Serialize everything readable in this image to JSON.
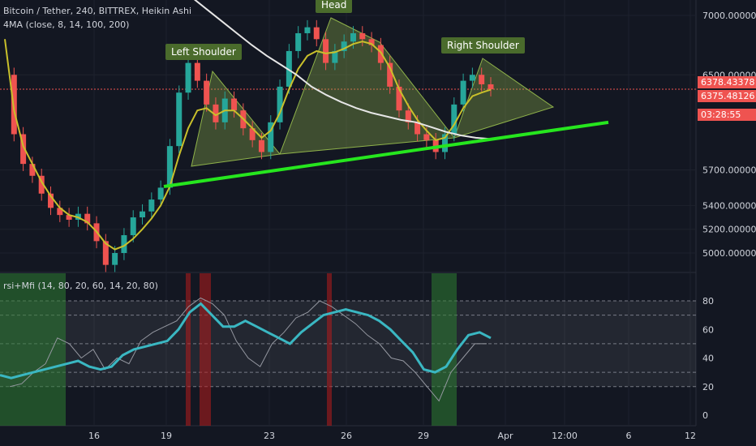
{
  "legend": {
    "symbol": "Bitcoin / Tether, 240, BITTREX, Heikin Ashi",
    "ma": "4MA (close, 8, 14, 100, 200)",
    "osc": "rsi+Mfi (14, 80, 20, 60, 14, 20, 80)"
  },
  "annotations": {
    "left": "Left Shoulder",
    "head": "Head",
    "right": "Right Shoulder"
  },
  "price_tags": {
    "last": "6378.43378",
    "ma": "6375.48126",
    "countdown": "03:28:55"
  },
  "colors": {
    "bg": "#131722",
    "up": "#26a69a",
    "down": "#ef5350",
    "ma_fast": "#c9c02b",
    "ma_slow": "#e6e6e6",
    "trend": "#26e61e",
    "rsi": "#3ab7c2",
    "mfi": "#9598a1",
    "pattern": "#8fb24a",
    "osc_green": "#2e7d32",
    "osc_red": "#b71c1c"
  },
  "chart_data": [
    {
      "type": "candlestick",
      "title": "Bitcoin / Tether, 240, BITTREX, Heikin Ashi",
      "x_ticks": [
        "16",
        "19",
        "23",
        "26",
        "29",
        "Apr",
        "12:00",
        "6",
        "12"
      ],
      "y_ticks": [
        "7000.00000",
        "6500.00000",
        "5700.00000",
        "5400.00000",
        "5200.00000",
        "5000.00000"
      ],
      "y_tick_values": [
        7000,
        6500,
        5700,
        5400,
        5200,
        5000
      ],
      "last_price": 6378.43378,
      "ma_value": 6375.48126,
      "close_series": [
        6500,
        6000,
        5750,
        5650,
        5500,
        5380,
        5320,
        5280,
        5330,
        5250,
        5100,
        4900,
        5000,
        5150,
        5300,
        5350,
        5450,
        5550,
        5900,
        6350,
        6600,
        6450,
        6250,
        6100,
        6300,
        6200,
        6050,
        5950,
        5850,
        6100,
        6400,
        6700,
        6850,
        6900,
        6800,
        6600,
        6700,
        6780,
        6850,
        6800,
        6750,
        6600,
        6400,
        6200,
        6100,
        6000,
        5950,
        5850,
        6000,
        6250,
        6450,
        6500,
        6420,
        6378
      ],
      "ma_fast_series": [
        6800,
        6200,
        5900,
        5750,
        5600,
        5480,
        5380,
        5320,
        5300,
        5260,
        5180,
        5080,
        5030,
        5060,
        5120,
        5200,
        5290,
        5400,
        5560,
        5820,
        6050,
        6200,
        6220,
        6160,
        6200,
        6200,
        6130,
        6050,
        5970,
        6030,
        6180,
        6380,
        6550,
        6660,
        6700,
        6680,
        6690,
        6720,
        6760,
        6780,
        6760,
        6690,
        6560,
        6380,
        6240,
        6120,
        6030,
        5950,
        5970,
        6080,
        6220,
        6320,
        6350,
        6375
      ],
      "ma_slow_series": [
        7350,
        7250,
        7150,
        7050,
        6950,
        6850,
        6750,
        6660,
        6580,
        6500,
        6400,
        6330,
        6270,
        6220,
        6180,
        6150,
        6120,
        6100,
        6060,
        6020,
        5990,
        5970,
        5960
      ],
      "trendline": [
        5560,
        6100
      ],
      "pattern": [
        "left shoulder",
        "head",
        "right shoulder"
      ]
    },
    {
      "type": "line",
      "title": "rsi+Mfi (14, 80, 20, 60, 14, 20, 80)",
      "y_ticks": [
        "80",
        "60",
        "40",
        "20",
        "0"
      ],
      "y_tick_values": [
        80,
        60,
        40,
        20,
        0
      ],
      "levels": [
        80,
        70,
        50,
        30,
        20
      ],
      "series": [
        {
          "values": [
            28,
            26,
            28,
            30,
            32,
            34,
            36,
            38,
            34,
            32,
            34,
            42,
            46,
            48,
            50,
            52,
            60,
            72,
            78,
            70,
            62,
            62,
            66,
            62,
            58,
            54,
            50,
            58,
            64,
            70,
            72,
            74,
            72,
            70,
            66,
            60,
            52,
            44,
            32,
            30,
            34,
            46,
            56,
            58,
            54
          ]
        },
        {
          "values": [
            20,
            22,
            30,
            36,
            54,
            50,
            40,
            46,
            32,
            40,
            36,
            52,
            58,
            62,
            66,
            76,
            82,
            78,
            70,
            52,
            40,
            34,
            50,
            58,
            68,
            72,
            80,
            76,
            70,
            64,
            56,
            50,
            40,
            38,
            30,
            20,
            10,
            30,
            40,
            50,
            50
          ]
        }
      ]
    }
  ]
}
